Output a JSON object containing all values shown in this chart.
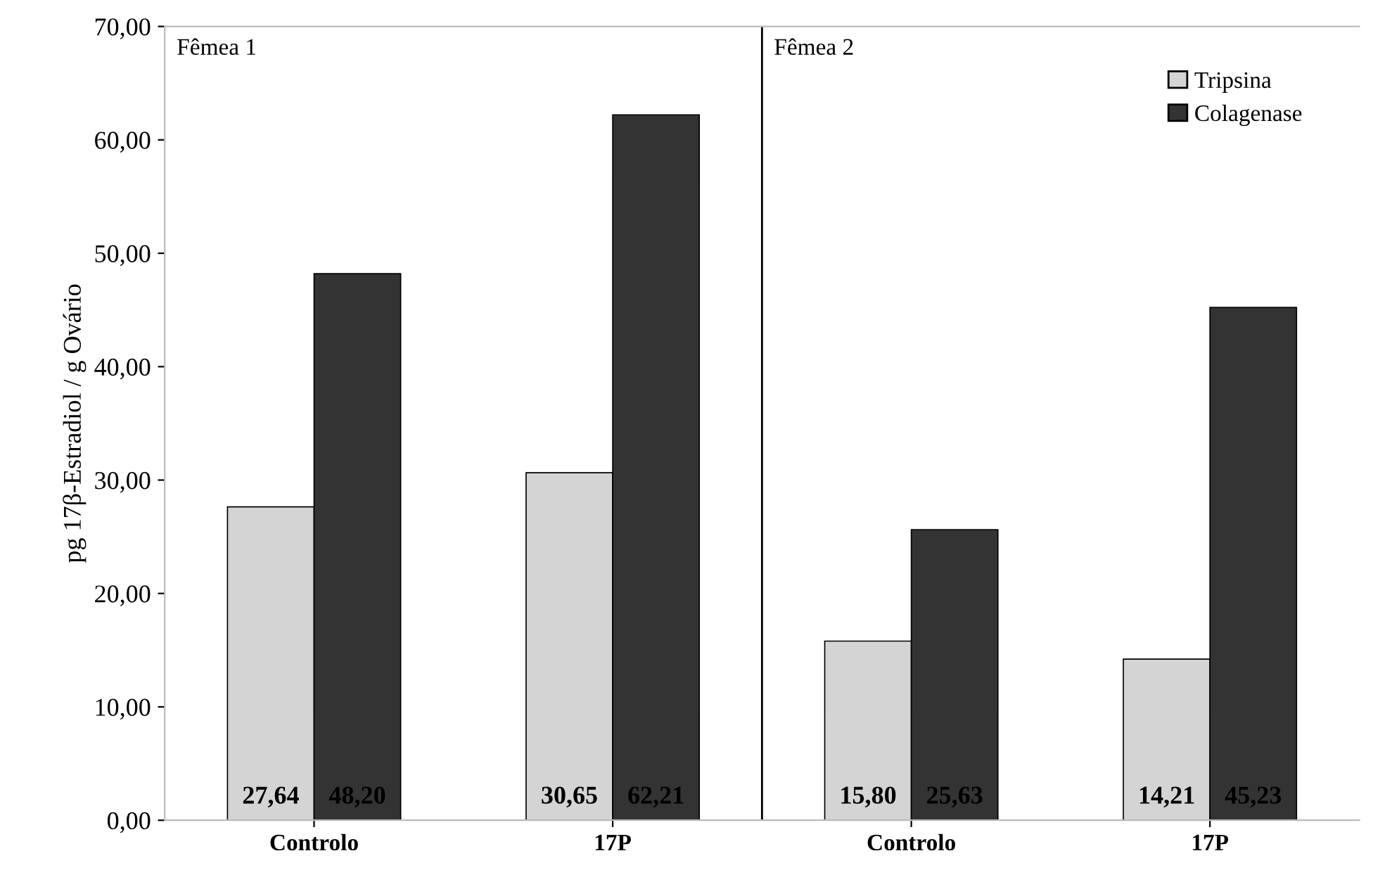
{
  "chart_data": {
    "type": "bar",
    "ylabel": "pg 17β-Estradiol / g Ovário",
    "categories": [
      "Controlo",
      "17P",
      "Controlo",
      "17P"
    ],
    "series": [
      {
        "name": "Tripsina",
        "color": "#d4d4d4",
        "values": [
          27.64,
          30.65,
          15.8,
          14.21
        ],
        "value_labels": [
          "27,64",
          "30,65",
          "15,80",
          "14,21"
        ]
      },
      {
        "name": "Colagenase",
        "color": "#333333",
        "values": [
          48.2,
          62.21,
          25.63,
          45.23
        ],
        "value_labels": [
          "48,20",
          "62,21",
          "25,63",
          "45,23"
        ]
      }
    ],
    "ylim": [
      0,
      70
    ],
    "yticks": [
      {
        "value": 0,
        "label": "0,00"
      },
      {
        "value": 10,
        "label": "10,00"
      },
      {
        "value": 20,
        "label": "20,00"
      },
      {
        "value": 30,
        "label": "30,00"
      },
      {
        "value": 40,
        "label": "40,00"
      },
      {
        "value": 50,
        "label": "50,00"
      },
      {
        "value": 60,
        "label": "60,00"
      },
      {
        "value": 70,
        "label": "70,00"
      }
    ],
    "annotations": [
      "Fêmea 1",
      "Fêmea 2"
    ],
    "legend": "top right",
    "grid": false
  }
}
